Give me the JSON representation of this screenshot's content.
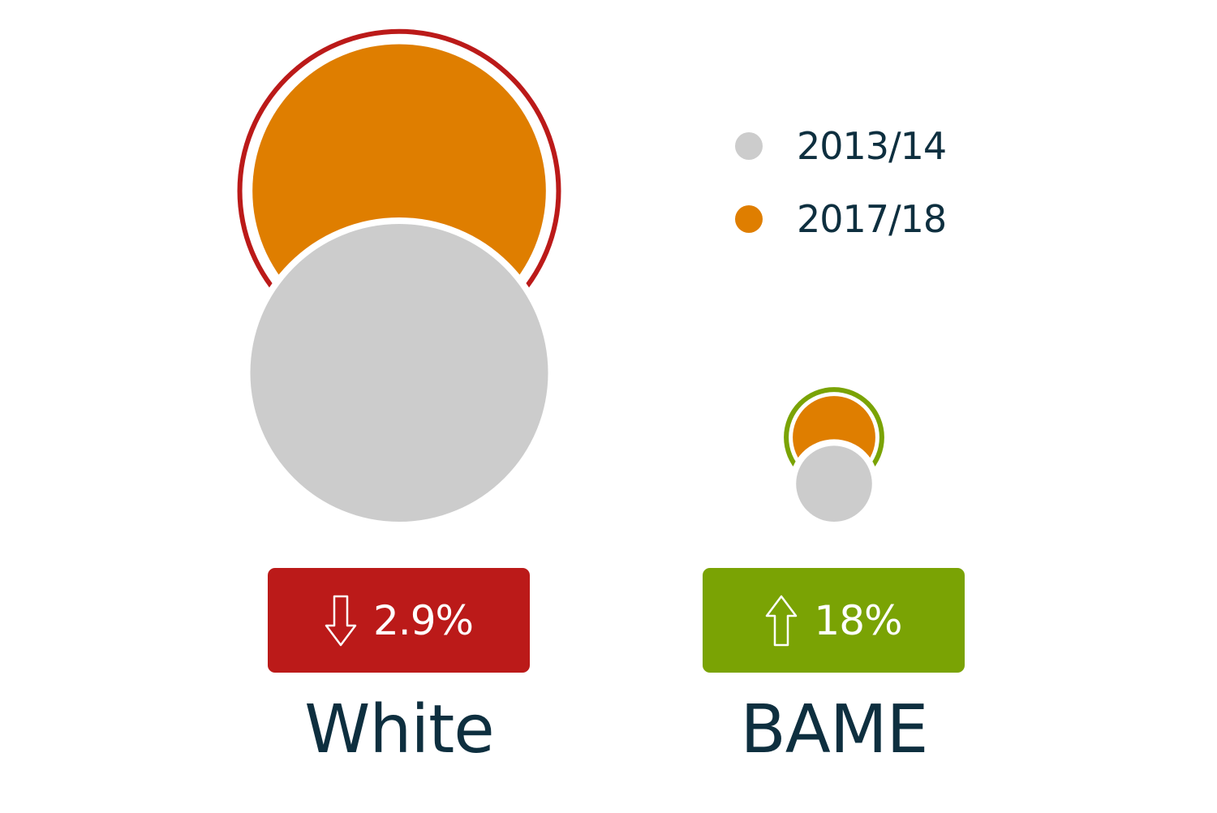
{
  "chart_data": {
    "type": "bubble",
    "title": "",
    "categories": [
      "White",
      "BAME"
    ],
    "series": [
      {
        "name": "2013/14",
        "color": "#cccccc",
        "values": [
          100,
          6.5
        ]
      },
      {
        "name": "2017/18",
        "color": "#df7e00",
        "values": [
          97.1,
          7.7
        ]
      }
    ],
    "changes": [
      {
        "category": "White",
        "direction": "down",
        "text": "2.9%",
        "color": "#bb1a19"
      },
      {
        "category": "BAME",
        "direction": "up",
        "text": "18%",
        "color": "#7aa304"
      }
    ],
    "legend_position": "top-right"
  }
}
